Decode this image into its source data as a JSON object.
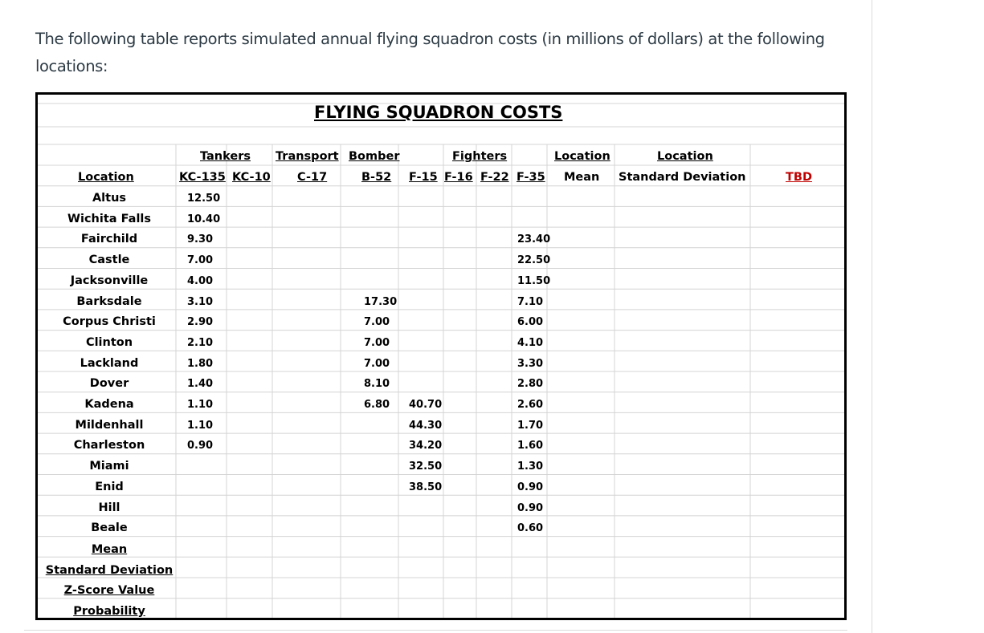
{
  "intro": {
    "line1": "The following table reports simulated annual flying squadron costs (in millions of dollars) at the following",
    "line2": "locations:"
  },
  "sheet": {
    "title": "FLYING SQUADRON COSTS",
    "group_headers": {
      "tankers": "Tankers",
      "transport": "Transport",
      "bomber": "Bomber",
      "fighters": "Fighters",
      "location_mean": "Location",
      "location_sd": "Location"
    },
    "column_headers": {
      "location": "Location",
      "kc135": "KC-135",
      "kc10": "KC-10",
      "c17": "C-17",
      "b52": "B-52",
      "f15": "F-15",
      "f16": "F-16",
      "f22": "F-22",
      "f35": "F-35",
      "mean": "Mean",
      "sd": "Standard Deviation",
      "tbd": "TBD"
    },
    "rows": [
      {
        "location": "Altus",
        "kc135": "12.50",
        "b52": "",
        "f16": "",
        "f35": ""
      },
      {
        "location": "Wichita Falls",
        "kc135": "10.40",
        "b52": "",
        "f16": "",
        "f35": ""
      },
      {
        "location": "Fairchild",
        "kc135": "9.30",
        "b52": "",
        "f16": "",
        "f35": "23.40"
      },
      {
        "location": "Castle",
        "kc135": "7.00",
        "b52": "",
        "f16": "",
        "f35": "22.50"
      },
      {
        "location": "Jacksonville",
        "kc135": "4.00",
        "b52": "",
        "f16": "",
        "f35": "11.50"
      },
      {
        "location": "Barksdale",
        "kc135": "3.10",
        "b52": "17.30",
        "f16": "",
        "f35": "7.10"
      },
      {
        "location": "Corpus Christi",
        "kc135": "2.90",
        "b52": "7.00",
        "f16": "",
        "f35": "6.00"
      },
      {
        "location": "Clinton",
        "kc135": "2.10",
        "b52": "7.00",
        "f16": "",
        "f35": "4.10"
      },
      {
        "location": "Lackland",
        "kc135": "1.80",
        "b52": "7.00",
        "f16": "",
        "f35": "3.30"
      },
      {
        "location": "Dover",
        "kc135": "1.40",
        "b52": "8.10",
        "f16": "",
        "f35": "2.80"
      },
      {
        "location": "Kadena",
        "kc135": "1.10",
        "b52": "6.80",
        "f16": "40.70",
        "f35": "2.60"
      },
      {
        "location": "Mildenhall",
        "kc135": "1.10",
        "b52": "",
        "f16": "44.30",
        "f35": "1.70"
      },
      {
        "location": "Charleston",
        "kc135": "0.90",
        "b52": "",
        "f16": "34.20",
        "f35": "1.60"
      },
      {
        "location": "Miami",
        "kc135": "",
        "b52": "",
        "f16": "32.50",
        "f35": "1.30"
      },
      {
        "location": "Enid",
        "kc135": "",
        "b52": "",
        "f16": "38.50",
        "f35": "0.90"
      },
      {
        "location": "Hill",
        "kc135": "",
        "b52": "",
        "f16": "",
        "f35": "0.90"
      },
      {
        "location": "Beale",
        "kc135": "",
        "b52": "",
        "f16": "",
        "f35": "0.60"
      }
    ],
    "summary_rows": [
      "Mean",
      "Standard Deviation",
      "Z-Score Value",
      "Probability"
    ]
  }
}
